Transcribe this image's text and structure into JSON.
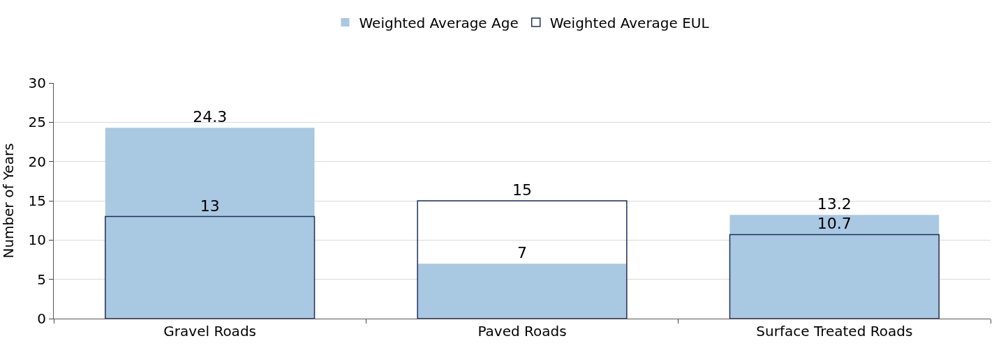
{
  "chart_data": {
    "type": "bar",
    "ylabel": "Number of Years",
    "categories": [
      "Gravel Roads",
      "Paved Roads",
      "Surface Treated Roads"
    ],
    "series": [
      {
        "name": "Weighted Average Age",
        "color": "#a9c8e2",
        "values": [
          24.3,
          7,
          13.2
        ]
      },
      {
        "name": "Weighted Average EUL",
        "color": "#1f2f5a",
        "values": [
          13,
          15,
          10.7
        ]
      }
    ],
    "ylim": [
      0,
      30
    ],
    "yticks": [
      0,
      5,
      10,
      15,
      20,
      25,
      30
    ],
    "grid": "y",
    "legend": "top",
    "data_labels": true
  }
}
